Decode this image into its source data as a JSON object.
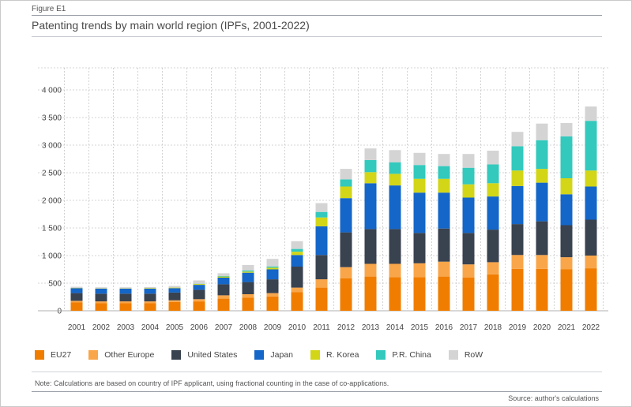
{
  "figure_label": "Figure E1",
  "title": "Patenting trends by main world region (IPFs, 2001-2022)",
  "note": "Note: Calculations are based on country of IPF applicant, using fractional counting in the case of co-applications.",
  "source": "Source: author's calculations",
  "chart_data": {
    "type": "bar",
    "stacked": true,
    "title": "Patenting trends by main world region (IPFs, 2001-2022)",
    "xlabel": "",
    "ylabel": "",
    "ylim": [
      0,
      4400
    ],
    "yticks": [
      0,
      500,
      1000,
      1500,
      2000,
      2500,
      3000,
      3500,
      4000
    ],
    "ytick_labels": [
      "0",
      "500",
      "1 000",
      "1 500",
      "2 000",
      "2 500",
      "3 000",
      "3 500",
      "4 000"
    ],
    "grid": true,
    "legend_position": "bottom",
    "categories": [
      "2001",
      "2002",
      "2003",
      "2004",
      "2005",
      "2006",
      "2007",
      "2008",
      "2009",
      "2010",
      "2011",
      "2012",
      "2013",
      "2014",
      "2015",
      "2016",
      "2017",
      "2018",
      "2019",
      "2020",
      "2021",
      "2022"
    ],
    "series": [
      {
        "name": "EU27",
        "color": "#f07d00",
        "values": [
          150,
          140,
          140,
          140,
          160,
          170,
          220,
          240,
          260,
          340,
          420,
          590,
          620,
          610,
          610,
          620,
          600,
          660,
          760,
          760,
          750,
          770
        ]
      },
      {
        "name": "Other Europe",
        "color": "#f9a64a",
        "values": [
          30,
          30,
          30,
          30,
          30,
          40,
          60,
          60,
          60,
          80,
          150,
          200,
          230,
          240,
          250,
          270,
          240,
          220,
          250,
          250,
          220,
          230
        ]
      },
      {
        "name": "United States",
        "color": "#39424f",
        "values": [
          140,
          140,
          140,
          140,
          140,
          170,
          200,
          220,
          250,
          380,
          440,
          630,
          630,
          630,
          550,
          600,
          570,
          590,
          560,
          610,
          580,
          650
        ]
      },
      {
        "name": "Japan",
        "color": "#1466c8",
        "values": [
          90,
          90,
          90,
          90,
          80,
          90,
          120,
          170,
          180,
          210,
          520,
          620,
          830,
          790,
          730,
          650,
          640,
          600,
          690,
          700,
          560,
          600
        ]
      },
      {
        "name": "R. Korea",
        "color": "#d2d617",
        "values": [
          5,
          5,
          5,
          10,
          10,
          15,
          20,
          20,
          30,
          60,
          160,
          210,
          200,
          210,
          250,
          250,
          240,
          240,
          280,
          250,
          290,
          290
        ]
      },
      {
        "name": "P.R. China",
        "color": "#33c9bd",
        "values": [
          0,
          0,
          0,
          0,
          0,
          5,
          10,
          20,
          20,
          50,
          100,
          130,
          220,
          210,
          250,
          230,
          300,
          340,
          440,
          520,
          760,
          900
        ]
      },
      {
        "name": "RoW",
        "color": "#d4d4d4",
        "values": [
          20,
          20,
          20,
          20,
          30,
          60,
          50,
          100,
          140,
          140,
          160,
          190,
          210,
          220,
          220,
          220,
          250,
          250,
          260,
          300,
          240,
          260
        ]
      }
    ]
  }
}
